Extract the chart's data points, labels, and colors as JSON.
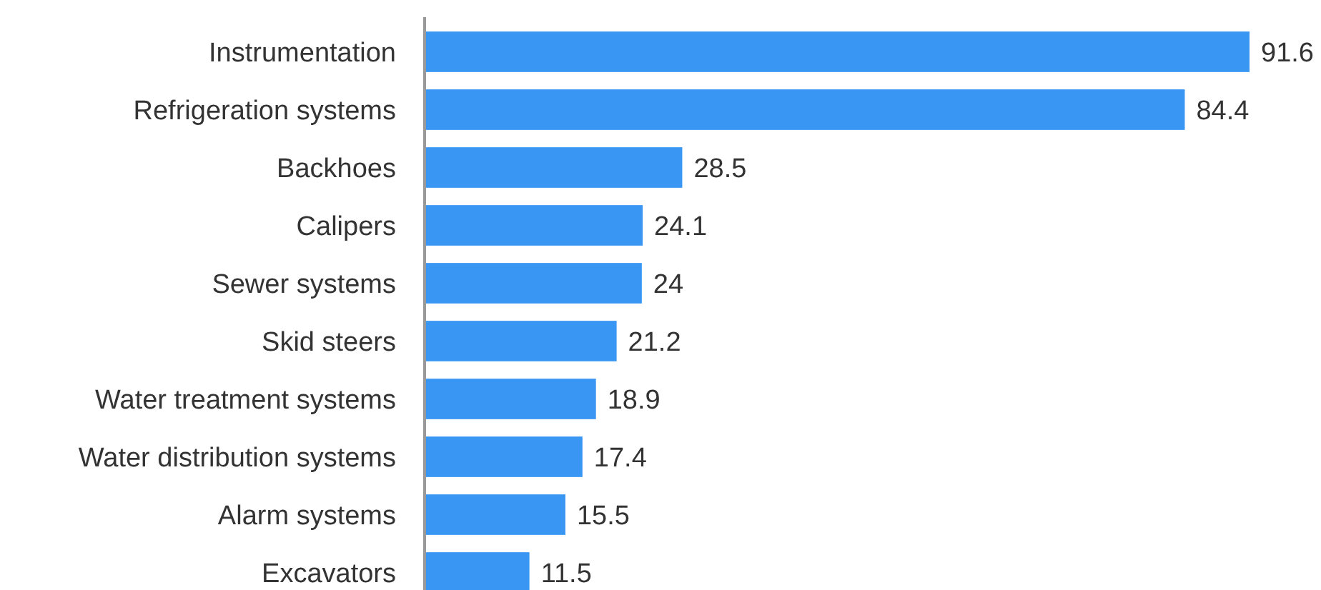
{
  "chart_data": {
    "type": "bar",
    "orientation": "horizontal",
    "data_labels": true,
    "color": "#3a96f3",
    "categories": [
      "Instrumentation",
      "Refrigeration systems",
      "Backhoes",
      "Calipers",
      "Sewer systems",
      "Skid steers",
      "Water treatment systems",
      "Water distribution systems",
      "Alarm systems",
      "Excavators"
    ],
    "values": [
      91.6,
      84.4,
      28.5,
      24.1,
      24,
      21.2,
      18.9,
      17.4,
      15.5,
      11.5
    ]
  }
}
